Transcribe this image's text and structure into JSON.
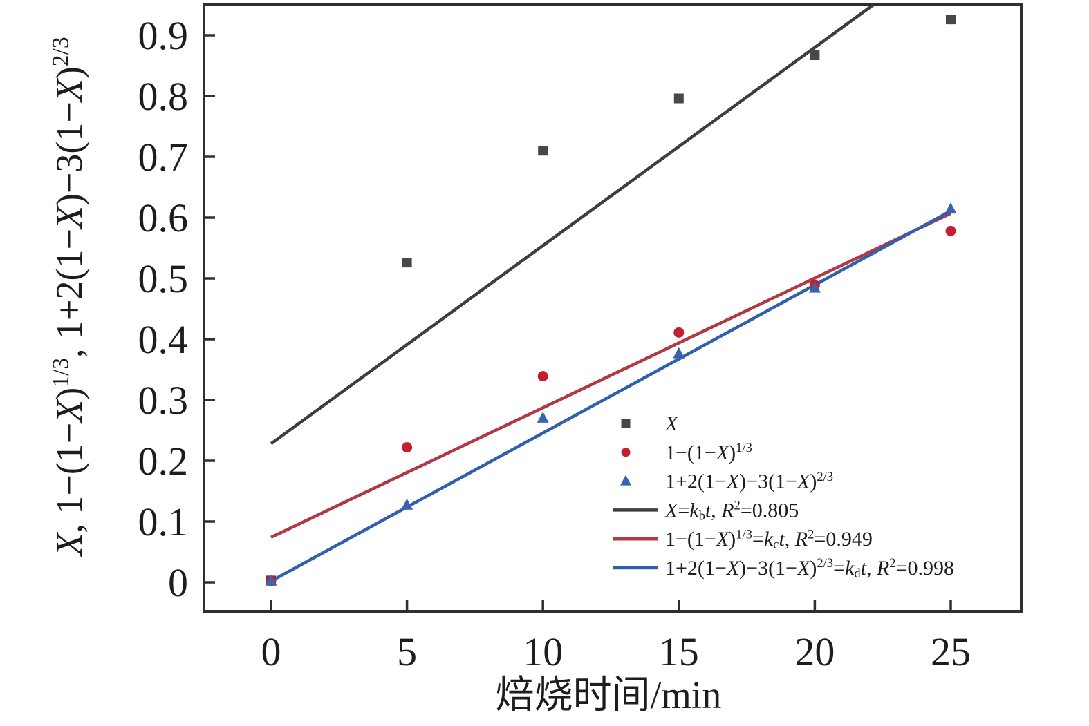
{
  "figure": {
    "background": "#ffffff"
  },
  "chart_data": {
    "type": "scatter",
    "title": "",
    "xlabel": "焙烧时间/min",
    "ylabel": "X, 1−(1−X)^(1/3), 1+2(1−X)−3(1−X)^(2/3)",
    "ylabel_rich": "{i:X}, 1−(1−{i:X})^{1/3}, 1+2(1−{i:X})−3(1−{i:X})^{2/3}",
    "xlim": [
      -2.5,
      27.6
    ],
    "ylim": [
      -0.05,
      0.95
    ],
    "grid": false,
    "x_ticks": {
      "values": [
        0,
        5,
        10,
        15,
        20,
        25
      ],
      "labels": [
        "0",
        "5",
        "10",
        "15",
        "20",
        "25"
      ]
    },
    "y_ticks": {
      "values": [
        0,
        0.1,
        0.2,
        0.3,
        0.4,
        0.5,
        0.6,
        0.7,
        0.8,
        0.9
      ],
      "labels": [
        "0",
        "0.1",
        "0.2",
        "0.3",
        "0.4",
        "0.5",
        "0.6",
        "0.7",
        "0.8",
        "0.9"
      ]
    },
    "series": [
      {
        "name": "X",
        "marker": "square",
        "color": "#46464d",
        "x": [
          0,
          5,
          10,
          15,
          20,
          25
        ],
        "y": [
          0.003,
          0.526,
          0.71,
          0.796,
          0.867,
          0.926
        ]
      },
      {
        "name": "1−(1−X)^(1/3)",
        "marker": "circle",
        "color": "#c32031",
        "x": [
          0,
          5,
          10,
          15,
          20,
          25
        ],
        "y": [
          0.002,
          0.222,
          0.339,
          0.411,
          0.489,
          0.578
        ]
      },
      {
        "name": "1+2(1−X)−3(1−X)^(2/3)",
        "marker": "triangle",
        "color": "#3a63ae",
        "x": [
          0,
          5,
          10,
          15,
          20,
          25
        ],
        "y": [
          0.002,
          0.127,
          0.27,
          0.376,
          0.484,
          0.614
        ]
      }
    ],
    "fit_lines": [
      {
        "name": "X = kb·t",
        "color": "#3d3d43",
        "x1": 0,
        "y1": 0.228,
        "x2": 22.15,
        "y2": 0.95,
        "r_squared": 0.805
      },
      {
        "name": "1−(1−X)^(1/3) = kc·t",
        "color": "#b23843",
        "x1": 0,
        "y1": 0.074,
        "x2": 25,
        "y2": 0.607,
        "r_squared": 0.949
      },
      {
        "name": "1+2(1−X)−3(1−X)^(2/3) = kd·t",
        "color": "#3060ad",
        "x1": 0,
        "y1": 0.002,
        "x2": 25,
        "y2": 0.611,
        "r_squared": 0.998
      }
    ],
    "legend": {
      "position": "lower-right-inside",
      "entries": [
        {
          "swatch": "marker",
          "marker": "square",
          "color": "#46464d",
          "label": "{i:X}"
        },
        {
          "swatch": "marker",
          "marker": "circle",
          "color": "#c32031",
          "label": "1−(1−{i:X})^{1/3}"
        },
        {
          "swatch": "marker",
          "marker": "triangle",
          "color": "#3a63ae",
          "label": "1+2(1−{i:X})−3(1−{i:X})^{2/3}"
        },
        {
          "swatch": "line",
          "color": "#3d3d43",
          "label": "{i:X}={i:k}_{b}{i:t}, {i:R}^{2}=0.805"
        },
        {
          "swatch": "line",
          "color": "#b23843",
          "label": "1−(1−{i:X})^{1/3}={i:k}_{c}{i:t}, {i:R}^{2}=0.949"
        },
        {
          "swatch": "line",
          "color": "#3060ad",
          "label": "1+2(1−{i:X})−3(1−{i:X})^{2/3}={i:k}_{d}{i:t}, {i:R}^{2}=0.998"
        }
      ]
    },
    "axis_color": "#2e2e33"
  }
}
